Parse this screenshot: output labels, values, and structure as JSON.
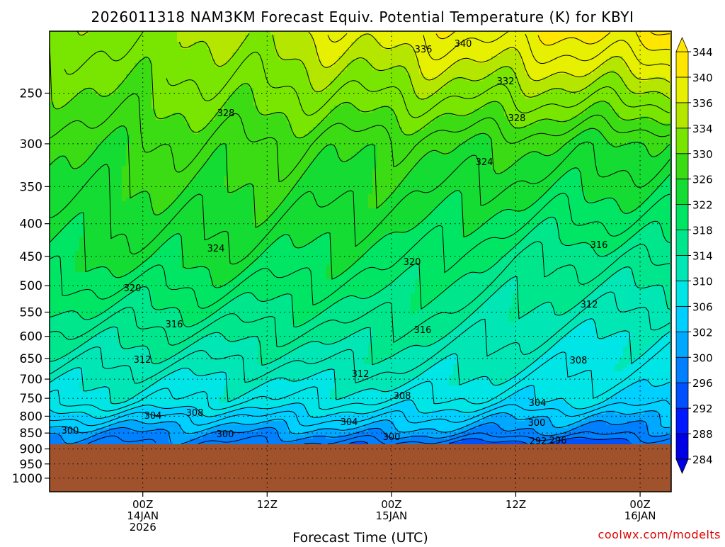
{
  "chart_data": {
    "type": "heatmap",
    "title": "2026011318 NAM3KM Forecast Equiv. Potential Temperature (K) for KBYI",
    "xlabel": "Forecast Time (UTC)",
    "ylabel": "",
    "credit": "coolwx.com/modelts",
    "x_range_hours": [
      -9,
      51
    ],
    "x_ticks": [
      {
        "hour": 0,
        "lines": [
          "00Z",
          "14JAN",
          "2026"
        ]
      },
      {
        "hour": 12,
        "lines": [
          "12Z"
        ]
      },
      {
        "hour": 24,
        "lines": [
          "00Z",
          "15JAN"
        ]
      },
      {
        "hour": 36,
        "lines": [
          "12Z"
        ]
      },
      {
        "hour": 48,
        "lines": [
          "00Z",
          "16JAN"
        ]
      }
    ],
    "y_ticks": [
      "250",
      "300",
      "350",
      "400",
      "450",
      "500",
      "550",
      "600",
      "650",
      "700",
      "750",
      "800",
      "850",
      "900",
      "950",
      "1000"
    ],
    "y_range_hpa": [
      200,
      1050
    ],
    "surface_pressure_hpa": 885,
    "colorbar": {
      "labels": [
        "284",
        "288",
        "292",
        "296",
        "300",
        "302",
        "306",
        "310",
        "314",
        "318",
        "322",
        "326",
        "330",
        "334",
        "336",
        "340",
        "344"
      ],
      "colors": [
        "#0000e6",
        "#0018ff",
        "#0050ff",
        "#0080ff",
        "#00a8ff",
        "#00d0ff",
        "#00e6e6",
        "#00e6b4",
        "#00e68c",
        "#00e664",
        "#14dc32",
        "#3cdc14",
        "#78e600",
        "#b4e600",
        "#e6f000",
        "#ffe600"
      ]
    },
    "profiles": [
      {
        "hour": -9,
        "levels": [
          {
            "p": 200,
            "k": 332
          },
          {
            "p": 300,
            "k": 326
          },
          {
            "p": 450,
            "k": 322
          },
          {
            "p": 600,
            "k": 315
          },
          {
            "p": 700,
            "k": 311
          },
          {
            "p": 760,
            "k": 309
          },
          {
            "p": 800,
            "k": 305
          },
          {
            "p": 850,
            "k": 300
          },
          {
            "p": 885,
            "k": 298
          }
        ]
      },
      {
        "hour": 6,
        "levels": [
          {
            "p": 200,
            "k": 334
          },
          {
            "p": 300,
            "k": 328
          },
          {
            "p": 450,
            "k": 323
          },
          {
            "p": 600,
            "k": 315
          },
          {
            "p": 700,
            "k": 310
          },
          {
            "p": 760,
            "k": 308
          },
          {
            "p": 800,
            "k": 304
          },
          {
            "p": 850,
            "k": 300
          },
          {
            "p": 885,
            "k": 298
          }
        ]
      },
      {
        "hour": 24,
        "levels": [
          {
            "p": 200,
            "k": 338
          },
          {
            "p": 300,
            "k": 327
          },
          {
            "p": 450,
            "k": 321
          },
          {
            "p": 600,
            "k": 315
          },
          {
            "p": 700,
            "k": 311
          },
          {
            "p": 760,
            "k": 308
          },
          {
            "p": 800,
            "k": 305
          },
          {
            "p": 850,
            "k": 301
          },
          {
            "p": 885,
            "k": 297
          }
        ]
      },
      {
        "hour": 40,
        "levels": [
          {
            "p": 200,
            "k": 340
          },
          {
            "p": 300,
            "k": 326
          },
          {
            "p": 450,
            "k": 316
          },
          {
            "p": 600,
            "k": 311
          },
          {
            "p": 700,
            "k": 308
          },
          {
            "p": 760,
            "k": 306
          },
          {
            "p": 800,
            "k": 302
          },
          {
            "p": 850,
            "k": 299
          },
          {
            "p": 885,
            "k": 294
          }
        ]
      },
      {
        "hour": 51,
        "levels": [
          {
            "p": 200,
            "k": 342
          },
          {
            "p": 300,
            "k": 325
          },
          {
            "p": 450,
            "k": 317
          },
          {
            "p": 600,
            "k": 309
          },
          {
            "p": 700,
            "k": 307
          },
          {
            "p": 760,
            "k": 305
          },
          {
            "p": 800,
            "k": 302
          },
          {
            "p": 850,
            "k": 299
          },
          {
            "p": 885,
            "k": 296
          }
        ]
      }
    ],
    "contour_labels": [
      "340",
      "336",
      "332",
      "328",
      "328",
      "324",
      "324",
      "320",
      "320",
      "316",
      "316",
      "316",
      "312",
      "312",
      "312",
      "308",
      "308",
      "308",
      "304",
      "304",
      "304",
      "300",
      "300",
      "300",
      "300",
      "292",
      "296"
    ]
  }
}
